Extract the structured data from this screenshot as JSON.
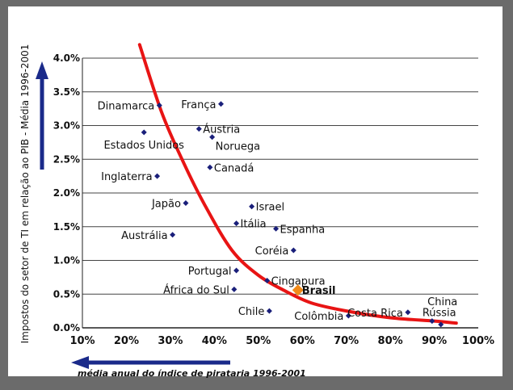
{
  "chart_data": {
    "type": "scatter",
    "title": "",
    "xlabel": "média anual do índice de pirataria 1996-2001",
    "ylabel": "Impostos do setor de TI em relação ao PIB - Média 1996-2001",
    "xlim": [
      10,
      100
    ],
    "ylim": [
      0,
      4.0
    ],
    "x_ticks": [
      "10%",
      "20%",
      "30%",
      "40%",
      "50%",
      "60%",
      "70%",
      "80%",
      "90%",
      "100%"
    ],
    "y_ticks": [
      "0.0%",
      "0.5%",
      "1.0%",
      "1.5%",
      "2.0%",
      "2.5%",
      "3.0%",
      "3.5%",
      "4.0%"
    ],
    "grid": "horizontal",
    "colors": {
      "points": "#1a1f7a",
      "highlight": "#f28a18",
      "curve": "#e81414",
      "arrow": "#1a2a8a",
      "frame": "#6b6b6b"
    },
    "points": [
      {
        "label": "Dinamarca",
        "x": 27.5,
        "y": 3.3,
        "anchor": "left"
      },
      {
        "label": "França",
        "x": 41.5,
        "y": 3.32,
        "anchor": "left"
      },
      {
        "label": "Estados Unidos",
        "x": 24,
        "y": 2.9,
        "anchor": "below"
      },
      {
        "label": "Áustria",
        "x": 36.5,
        "y": 2.95,
        "anchor": "right"
      },
      {
        "label": "Noruega",
        "x": 39.5,
        "y": 2.83,
        "anchor": "right-below"
      },
      {
        "label": "Canadá",
        "x": 39,
        "y": 2.38,
        "anchor": "right"
      },
      {
        "label": "Inglaterra",
        "x": 27,
        "y": 2.25,
        "anchor": "left"
      },
      {
        "label": "Japão",
        "x": 33.5,
        "y": 1.85,
        "anchor": "left"
      },
      {
        "label": "Israel",
        "x": 48.5,
        "y": 1.8,
        "anchor": "right"
      },
      {
        "label": "Itália",
        "x": 45,
        "y": 1.55,
        "anchor": "right"
      },
      {
        "label": "Espanha",
        "x": 54,
        "y": 1.47,
        "anchor": "right"
      },
      {
        "label": "Austrália",
        "x": 30.5,
        "y": 1.38,
        "anchor": "left"
      },
      {
        "label": "Coréia",
        "x": 58,
        "y": 1.15,
        "anchor": "left"
      },
      {
        "label": "Portugal",
        "x": 45,
        "y": 0.85,
        "anchor": "left"
      },
      {
        "label": "Cingapura",
        "x": 52,
        "y": 0.7,
        "anchor": "right"
      },
      {
        "label": "África do Sul",
        "x": 44.5,
        "y": 0.57,
        "anchor": "left"
      },
      {
        "label": "Brasil",
        "x": 59,
        "y": 0.56,
        "anchor": "right",
        "highlight": true
      },
      {
        "label": "Chile",
        "x": 52.5,
        "y": 0.25,
        "anchor": "left"
      },
      {
        "label": "Colômbia",
        "x": 70.5,
        "y": 0.18,
        "anchor": "left"
      },
      {
        "label": "Costa Rica",
        "x": 84,
        "y": 0.23,
        "anchor": "left"
      },
      {
        "label": "Rússia",
        "x": 89.5,
        "y": 0.1,
        "anchor": "right-above"
      },
      {
        "label": "China",
        "x": 91.5,
        "y": 0.05,
        "anchor": "above"
      }
    ],
    "trend_curve": [
      {
        "x": 23,
        "y": 4.2
      },
      {
        "x": 28,
        "y": 3.2
      },
      {
        "x": 33,
        "y": 2.45
      },
      {
        "x": 38,
        "y": 1.8
      },
      {
        "x": 44,
        "y": 1.15
      },
      {
        "x": 50,
        "y": 0.78
      },
      {
        "x": 56,
        "y": 0.55
      },
      {
        "x": 62,
        "y": 0.37
      },
      {
        "x": 70,
        "y": 0.25
      },
      {
        "x": 80,
        "y": 0.15
      },
      {
        "x": 90,
        "y": 0.1
      },
      {
        "x": 95,
        "y": 0.07
      }
    ]
  }
}
